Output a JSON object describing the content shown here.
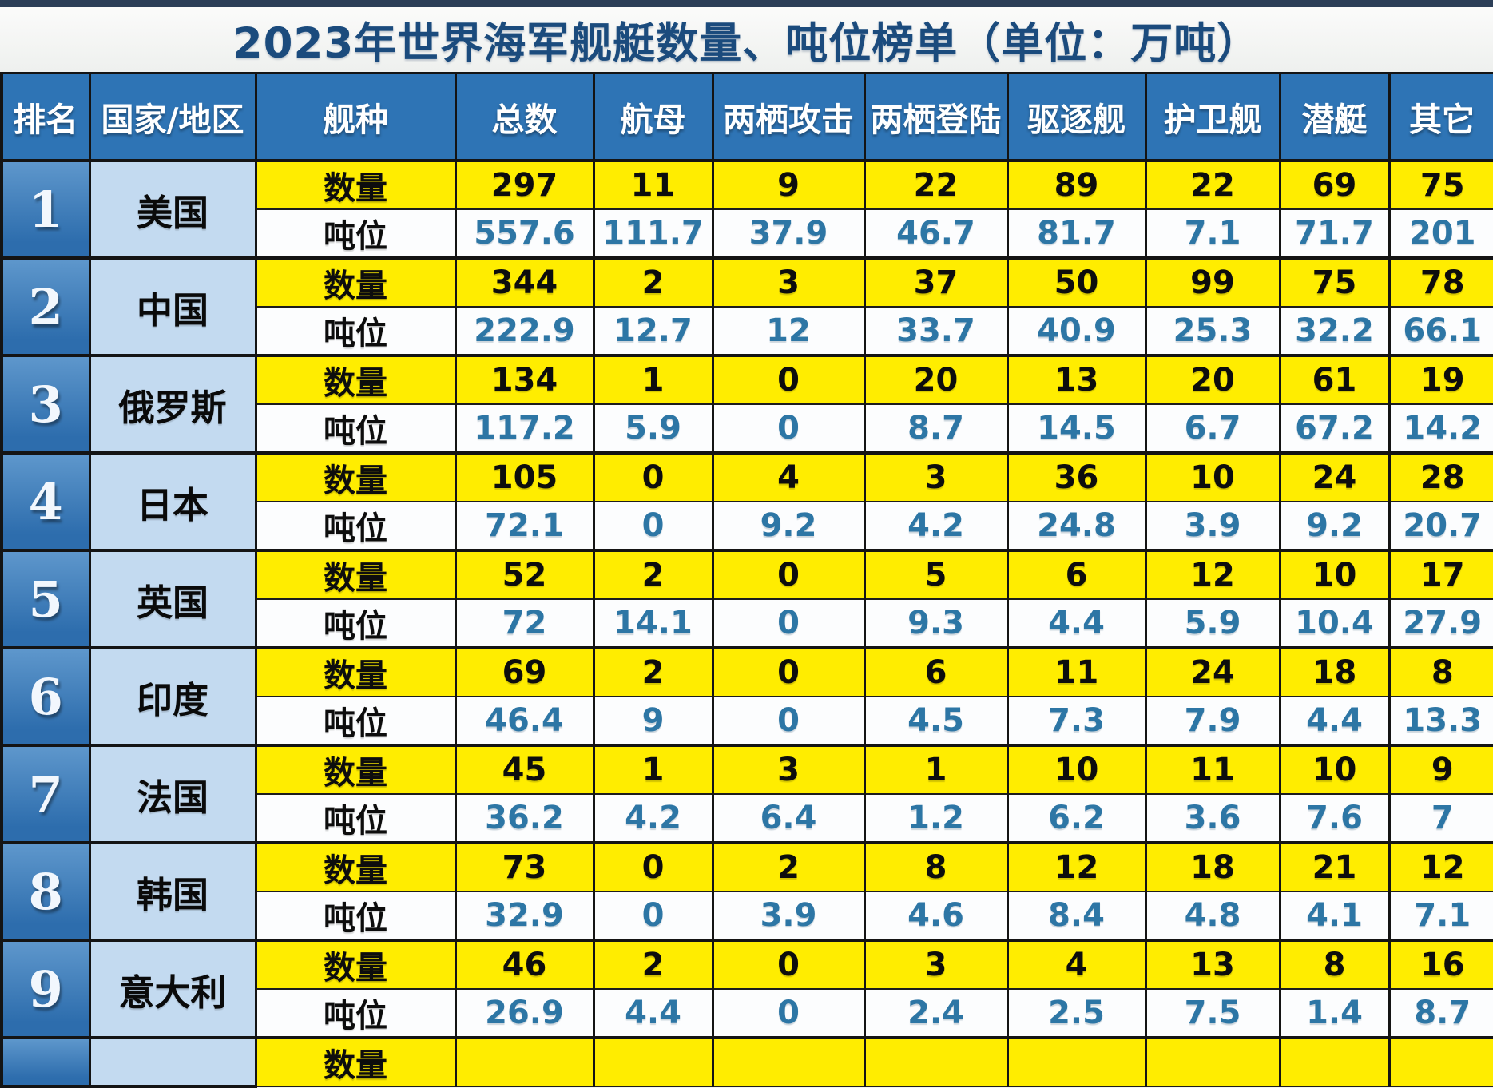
{
  "chart_data": {
    "type": "table",
    "title": "2023年世界海军舰艇数量、吨位榜单（单位：万吨）",
    "unit": "万吨",
    "columns": [
      "排名",
      "国家/地区",
      "舰种",
      "总数",
      "航母",
      "两栖攻击",
      "两栖登陆",
      "驱逐舰",
      "护卫舰",
      "潜艇",
      "其它"
    ],
    "metric_labels": {
      "quantity": "数量",
      "tonnage": "吨位"
    },
    "rows": [
      {
        "rank": "1",
        "country": "美国",
        "quantity": [
          "297",
          "11",
          "9",
          "22",
          "89",
          "22",
          "69",
          "75"
        ],
        "tonnage": [
          "557.6",
          "111.7",
          "37.9",
          "46.7",
          "81.7",
          "7.1",
          "71.7",
          "201"
        ]
      },
      {
        "rank": "2",
        "country": "中国",
        "quantity": [
          "344",
          "2",
          "3",
          "37",
          "50",
          "99",
          "75",
          "78"
        ],
        "tonnage": [
          "222.9",
          "12.7",
          "12",
          "33.7",
          "40.9",
          "25.3",
          "32.2",
          "66.1"
        ]
      },
      {
        "rank": "3",
        "country": "俄罗斯",
        "quantity": [
          "134",
          "1",
          "0",
          "20",
          "13",
          "20",
          "61",
          "19"
        ],
        "tonnage": [
          "117.2",
          "5.9",
          "0",
          "8.7",
          "14.5",
          "6.7",
          "67.2",
          "14.2"
        ]
      },
      {
        "rank": "4",
        "country": "日本",
        "quantity": [
          "105",
          "0",
          "4",
          "3",
          "36",
          "10",
          "24",
          "28"
        ],
        "tonnage": [
          "72.1",
          "0",
          "9.2",
          "4.2",
          "24.8",
          "3.9",
          "9.2",
          "20.7"
        ]
      },
      {
        "rank": "5",
        "country": "英国",
        "quantity": [
          "52",
          "2",
          "0",
          "5",
          "6",
          "12",
          "10",
          "17"
        ],
        "tonnage": [
          "72",
          "14.1",
          "0",
          "9.3",
          "4.4",
          "5.9",
          "10.4",
          "27.9"
        ]
      },
      {
        "rank": "6",
        "country": "印度",
        "quantity": [
          "69",
          "2",
          "0",
          "6",
          "11",
          "24",
          "18",
          "8"
        ],
        "tonnage": [
          "46.4",
          "9",
          "0",
          "4.5",
          "7.3",
          "7.9",
          "4.4",
          "13.3"
        ]
      },
      {
        "rank": "7",
        "country": "法国",
        "quantity": [
          "45",
          "1",
          "3",
          "1",
          "10",
          "11",
          "10",
          "9"
        ],
        "tonnage": [
          "36.2",
          "4.2",
          "6.4",
          "1.2",
          "6.2",
          "3.6",
          "7.6",
          "7"
        ]
      },
      {
        "rank": "8",
        "country": "韩国",
        "quantity": [
          "73",
          "0",
          "2",
          "8",
          "12",
          "18",
          "21",
          "12"
        ],
        "tonnage": [
          "32.9",
          "0",
          "3.9",
          "4.6",
          "8.4",
          "4.8",
          "4.1",
          "7.1"
        ]
      },
      {
        "rank": "9",
        "country": "意大利",
        "quantity": [
          "46",
          "2",
          "0",
          "3",
          "4",
          "13",
          "8",
          "16"
        ],
        "tonnage": [
          "26.9",
          "4.4",
          "0",
          "2.4",
          "2.5",
          "7.5",
          "1.4",
          "8.7"
        ]
      }
    ],
    "partial_next_row": {
      "metric_label": "数量"
    },
    "layout": {
      "legend": "none",
      "grid": "on"
    }
  },
  "colors": {
    "header_blue": "#2e74b5",
    "rank_blue": "#3a7abb",
    "country_light_blue": "#c3daf0",
    "quantity_yellow": "#ffed00",
    "tonnage_row_white": "#fcfdfe",
    "tonnage_text_blue": "#2d76a5",
    "title_text_navy": "#1b4b7d",
    "grid_line": "#141414",
    "top_bar": "#2c3f58"
  }
}
